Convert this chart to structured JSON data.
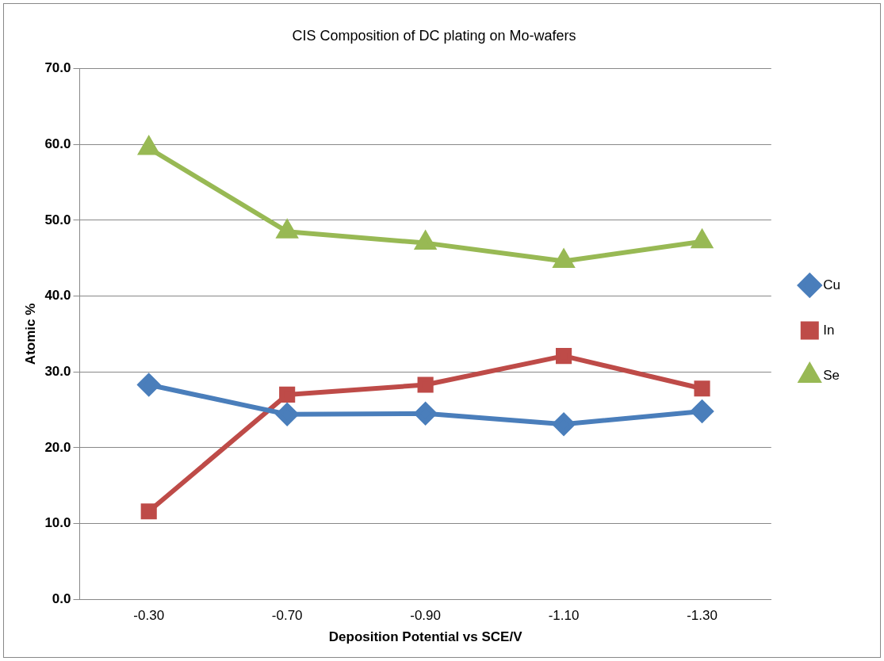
{
  "chart_data": {
    "type": "line",
    "title": "CIS Composition of DC plating on Mo-wafers",
    "xlabel": "Deposition Potential vs SCE/V",
    "ylabel": "Atomic %",
    "categories": [
      "-0.30",
      "-0.70",
      "-0.90",
      "-1.10",
      "-1.30"
    ],
    "series": [
      {
        "name": "Cu",
        "color": "#4a7ebb",
        "values": [
          28.3,
          24.4,
          24.5,
          23.1,
          24.8
        ],
        "marker": "diamond"
      },
      {
        "name": "In",
        "color": "#be4b48",
        "values": [
          11.6,
          27.0,
          28.3,
          32.1,
          27.8
        ],
        "marker": "square"
      },
      {
        "name": "Se",
        "color": "#98b954",
        "values": [
          59.5,
          48.5,
          47.0,
          44.6,
          47.2
        ],
        "marker": "triangle"
      }
    ],
    "ylim": [
      0,
      70
    ],
    "yticks": [
      {
        "value": 0,
        "label": "0.0"
      },
      {
        "value": 10,
        "label": "10.0"
      },
      {
        "value": 20,
        "label": "20.0"
      },
      {
        "value": 30,
        "label": "30.0"
      },
      {
        "value": 40,
        "label": "40.0"
      },
      {
        "value": 50,
        "label": "50.0"
      },
      {
        "value": 60,
        "label": "60.0"
      },
      {
        "value": 70,
        "label": "70.0"
      }
    ],
    "grid": "y",
    "legend": "right"
  }
}
